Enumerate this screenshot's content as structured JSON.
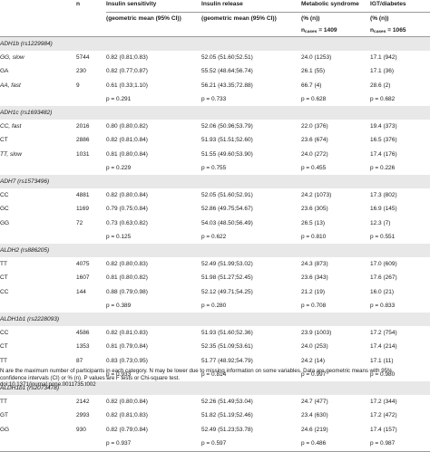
{
  "header": {
    "n": "n",
    "sensitivity_1": "Insulin sensitivity",
    "release_1": "Insulin release",
    "metabolic_1": "Metabolic syndrome",
    "igt_1": "IGT/diabetes",
    "sensitivity_2": "(geometric mean (95% CI))",
    "release_2": "(geometric mean (95% CI))",
    "metabolic_2": "(% (n))",
    "igt_2": "(% (n))",
    "metabolic_n_prefix": "n",
    "metabolic_n_sub": "cases",
    "metabolic_n_value": " = 1409",
    "igt_n_prefix": "n",
    "igt_n_sub": "cases",
    "igt_n_value": " = 1065"
  },
  "groups": [
    {
      "label": "ADH1b (rs1229984)",
      "rows": [
        [
          "GG, slow",
          "5744",
          "0.82 (0.81;0.83)",
          "52.05 (51.60;52.51)",
          "24.0 (1253)",
          "17.1 (942)"
        ],
        [
          "GA",
          "230",
          "0.82 (0.77;0.87)",
          "55.52 (48.64;56.74)",
          "26.1 (55)",
          "17.1 (36)"
        ],
        [
          "AA, fast",
          "9",
          "0.61 (0.33;1.10)",
          "56.21 (43.35;72.88)",
          "66.7 (4)",
          "28.6 (2)"
        ]
      ],
      "p": "p = 0.291",
      "p2": "p = 0.733",
      "p3": "p = 0.628",
      "p4": "p = 0.682"
    },
    {
      "label": "ADH1c (rs1693482)",
      "rows": [
        [
          "CC, fast",
          "2016",
          "0.80 (0.80;0.82)",
          "52.06 (50.96;53.79)",
          "22.0 (376)",
          "19.4 (373)"
        ],
        [
          "CT",
          "2886",
          "0.82 (0.81;0.84)",
          "51.93 (51.51;52.60)",
          "23.6 (674)",
          "16.5 (376)"
        ],
        [
          "TT, slow",
          "1031",
          "0.81 (0.80;0.84)",
          "51.55 (49.60;53.90)",
          "24.0 (272)",
          "17.4 (176)"
        ]
      ],
      "p": "p = 0.229",
      "p2": "p = 0.755",
      "p3": "p = 0.455",
      "p4": "p = 0.226"
    },
    {
      "label": "ADH7 (rs1573496)",
      "rows": [
        [
          "CC",
          "4881",
          "0.82 (0.80;0.84)",
          "52.05 (51.60;52.91)",
          "24.2 (1073)",
          "17.3 (802)"
        ],
        [
          "GC",
          "1169",
          "0.79 (0.75;0.84)",
          "52.86 (49.75;54.67)",
          "23.6 (305)",
          "16.9 (145)"
        ],
        [
          "GG",
          "72",
          "0.73 (0.63;0.82)",
          "54.03 (48.50;56.49)",
          "26.5 (13)",
          "12.3 (7)"
        ]
      ],
      "p": "p = 0.125",
      "p2": "p = 0.622",
      "p3": "p = 0.810",
      "p4": "p = 0.551"
    },
    {
      "label": "ALDH2 (rs886205)",
      "rows": [
        [
          "TT",
          "4075",
          "0.82 (0.80;0.83)",
          "52.49 (51.99;53.02)",
          "24.3 (873)",
          "17.0 (609)"
        ],
        [
          "CT",
          "1607",
          "0.81 (0.80;0.82)",
          "51.98 (51.27;52.45)",
          "23.6 (343)",
          "17.6 (267)"
        ],
        [
          "CC",
          "144",
          "0.88 (0.79;0.98)",
          "52.12 (49.71;54.25)",
          "21.2 (19)",
          "16.0 (21)"
        ]
      ],
      "p": "p = 0.389",
      "p2": "p = 0.280",
      "p3": "p = 0.708",
      "p4": "p = 0.833"
    },
    {
      "label": "ALDH1b1 (rs2228093)",
      "rows": [
        [
          "CC",
          "4586",
          "0.82 (0.81;0.83)",
          "51.93 (51.60;52.36)",
          "23.9 (1003)",
          "17.2 (754)"
        ],
        [
          "CT",
          "1353",
          "0.81 (0.79;0.84)",
          "52.35 (51.09;53.61)",
          "24.0 (253)",
          "17.4 (214)"
        ],
        [
          "TT",
          "87",
          "0.83 (0.73;0.95)",
          "51.77 (48.92;54.79)",
          "24.2 (14)",
          "17.1 (11)"
        ]
      ],
      "p": "p = 0.933",
      "p2": "p = 0.814",
      "p3": "p = 0.997",
      "p4": "p = 0.980"
    },
    {
      "label": "ALDH1b1 (rs2073478)",
      "rows": [
        [
          "TT",
          "2142",
          "0.82 (0.80;0.84)",
          "52.26 (51.49;53.04)",
          "24.7 (477)",
          "17.2 (344)"
        ],
        [
          "GT",
          "2993",
          "0.82 (0.81;0.83)",
          "51.82 (51.19;52.46)",
          "23.4 (630)",
          "17.2 (472)"
        ],
        [
          "GG",
          "930",
          "0.82 (0.79;0.84)",
          "52.49 (51.23;53.78)",
          "24.6 (219)",
          "17.4 (157)"
        ]
      ],
      "p": "p = 0.937",
      "p2": "p = 0.597",
      "p3": "p = 0.486",
      "p4": "p = 0.987"
    }
  ],
  "footnote": {
    "line1": "N are the maximum number of participants in each category. N may be lower due to missing information on some variables. Data are geometric means with 95%",
    "line2": "confidence intervals (CI) or % (n). P values are F tests or Chi-square test.",
    "line3": "doi:10.1371/journal.pone.0011735.t002"
  }
}
